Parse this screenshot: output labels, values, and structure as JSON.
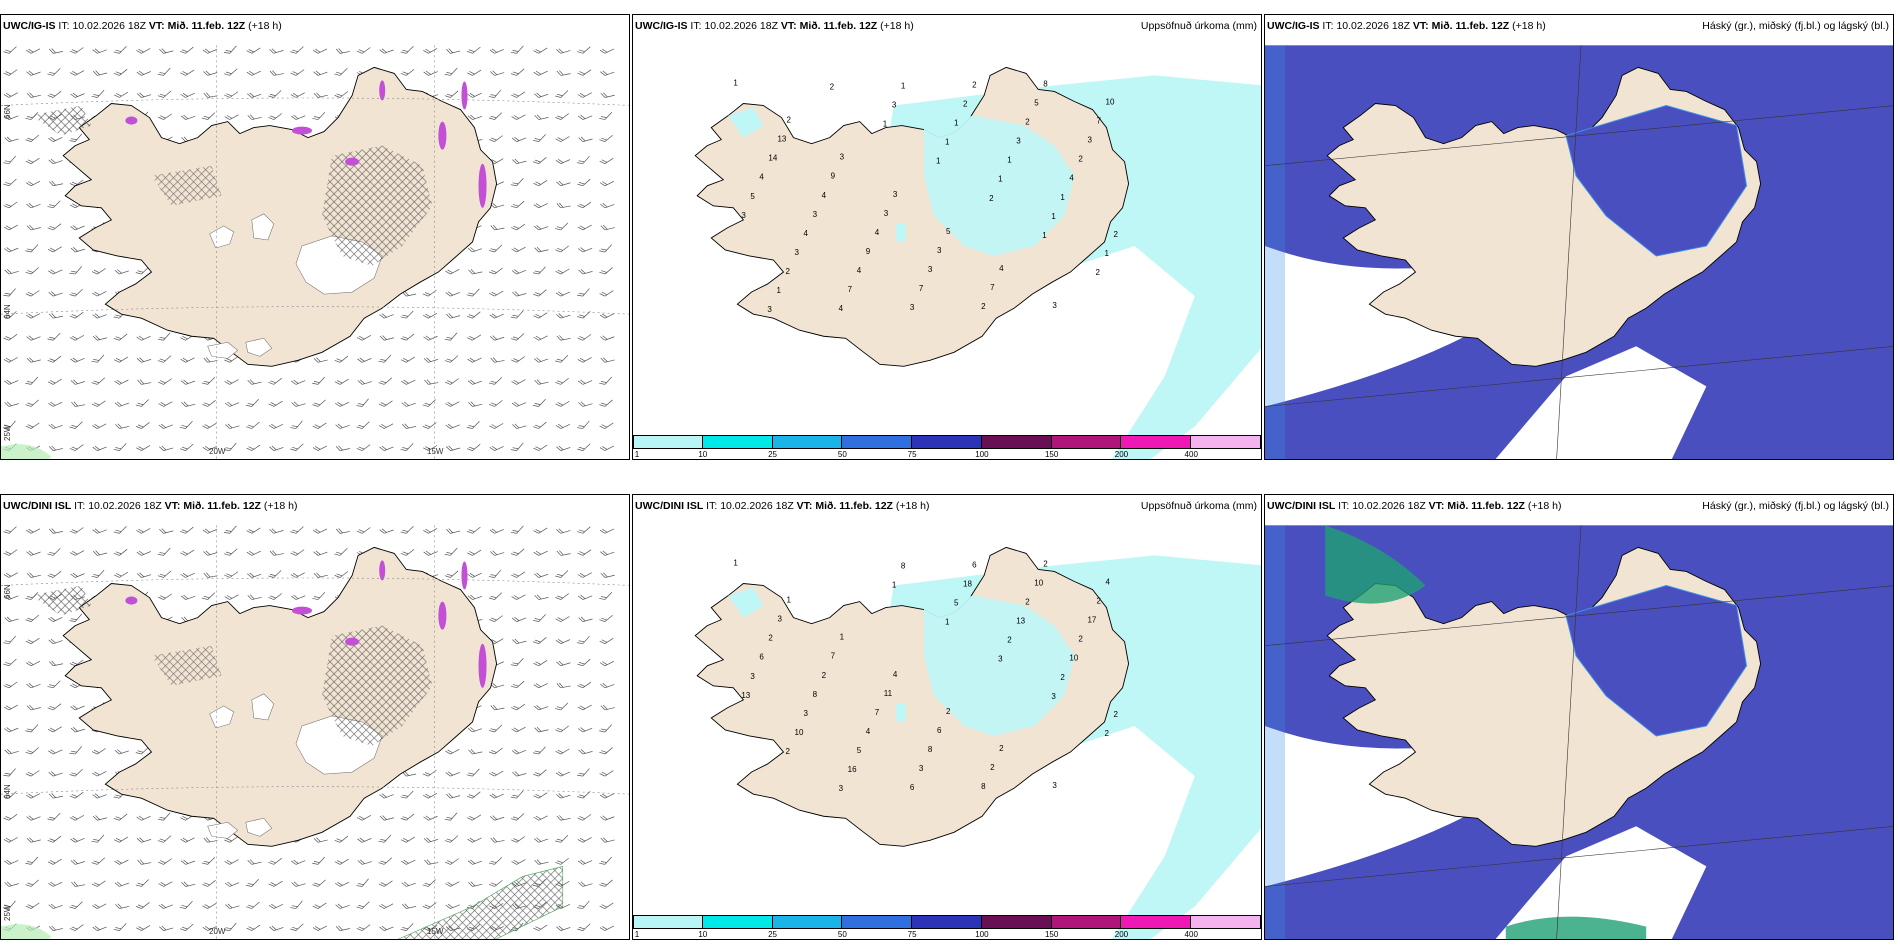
{
  "panels": [
    {
      "model": "UWC/IG-IS",
      "it_label": "IT:",
      "it": "10.02.2026 18Z",
      "vt_label": "VT:",
      "vt": "Mið. 11.feb. 12Z",
      "lead": "(+18 h)",
      "title": "",
      "type": "wind"
    },
    {
      "model": "UWC/IG-IS",
      "it_label": "IT:",
      "it": "10.02.2026 18Z",
      "vt_label": "VT:",
      "vt": "Mið. 11.feb. 12Z",
      "lead": "(+18 h)",
      "title": "Uppsöfnuð úrkoma (mm)",
      "type": "precip"
    },
    {
      "model": "UWC/IG-IS",
      "it_label": "IT:",
      "it": "10.02.2026 18Z",
      "vt_label": "VT:",
      "vt": "Mið. 11.feb. 12Z",
      "lead": "(+18 h)",
      "title": "Háský (gr.), miðský (fj.bl.) og lágský (bl.)",
      "type": "cloud"
    },
    {
      "model": "UWC/DINI ISL",
      "it_label": "IT:",
      "it": "10.02.2026 18Z",
      "vt_label": "VT:",
      "vt": "Mið. 11.feb. 12Z",
      "lead": "(+18 h)",
      "title": "",
      "type": "wind"
    },
    {
      "model": "UWC/DINI ISL",
      "it_label": "IT:",
      "it": "10.02.2026 18Z",
      "vt_label": "VT:",
      "vt": "Mið. 11.feb. 12Z",
      "lead": "(+18 h)",
      "title": "Uppsöfnuð úrkoma (mm)",
      "type": "precip"
    },
    {
      "model": "UWC/DINI ISL",
      "it_label": "IT:",
      "it": "10.02.2026 18Z",
      "vt_label": "VT:",
      "vt": "Mið. 11.feb. 12Z",
      "lead": "(+18 h)",
      "title": "Háský (gr.), miðský (fj.bl.) og lágský (bl.)",
      "type": "cloud"
    }
  ],
  "axis_labels": {
    "lon_20w": "20W",
    "lon_15w": "15W",
    "lat_66n": "66N",
    "lat_64n": "64N",
    "lat_25w": "25W"
  },
  "colorbar": {
    "ticks": [
      "1",
      "10",
      "25",
      "50",
      "75",
      "100",
      "150",
      "200",
      "400"
    ],
    "colors": [
      "#b9f5f5",
      "#00e8e8",
      "#1ab4e8",
      "#2f6fe0",
      "#2b34b8",
      "#6a0f55",
      "#b0157a",
      "#f018b4",
      "#f4b2ee"
    ]
  },
  "colors": {
    "land": "#f2e4d3",
    "cloud_low": "#4a4fbf",
    "cloud_mid": "#3d8fe8",
    "cloud_high": "#1fa074",
    "precip_light": "#bff6f6",
    "snow_purple": "#c24fd6",
    "hatch": "#555555"
  },
  "precip_numbers_top": [
    "1",
    "2",
    "3",
    "3",
    "5",
    "4",
    "3",
    "10",
    "13",
    "9",
    "3",
    "3",
    "7",
    "8",
    "7",
    "14",
    "4",
    "4",
    "3",
    "2",
    "5",
    "3",
    "4",
    "3",
    "9",
    "7",
    "2",
    "2",
    "2",
    "5",
    "4",
    "4",
    "3",
    "2",
    "3",
    "4",
    "3",
    "3",
    "7",
    "1",
    "1",
    "1",
    "1",
    "2",
    "2",
    "4",
    "3",
    "1",
    "1",
    "1",
    "1",
    "1",
    "2",
    "1",
    "1",
    "2",
    "1",
    "2",
    "3"
  ],
  "precip_numbers_bottom": [
    "1",
    "1",
    "1",
    "4",
    "2",
    "2",
    "3",
    "4",
    "3",
    "7",
    "11",
    "6",
    "2",
    "2",
    "2",
    "2",
    "2",
    "7",
    "8",
    "8",
    "10",
    "17",
    "6",
    "8",
    "4",
    "3",
    "6",
    "2",
    "2",
    "3",
    "3",
    "5",
    "6",
    "18",
    "13",
    "10",
    "13",
    "10",
    "16",
    "8",
    "5",
    "2",
    "2",
    "2",
    "2",
    "3",
    "1",
    "1",
    "3",
    "3",
    "2"
  ]
}
